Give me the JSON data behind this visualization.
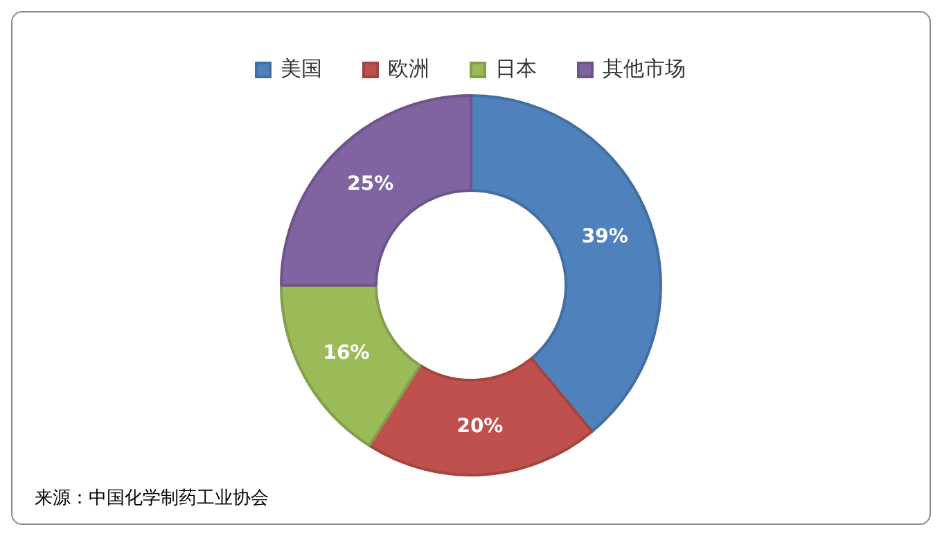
{
  "chart_data": {
    "type": "donut",
    "categories": [
      "美国",
      "欧洲",
      "日本",
      "其他市场"
    ],
    "values": [
      39,
      20,
      16,
      25
    ],
    "colors": [
      "#4f81bd",
      "#c0504d",
      "#9bbb59",
      "#8064a2"
    ],
    "value_labels": [
      "39%",
      "20%",
      "16%",
      "25%"
    ],
    "legend": "top",
    "annotations": [
      "来源：中国化学制药工业协会"
    ]
  }
}
